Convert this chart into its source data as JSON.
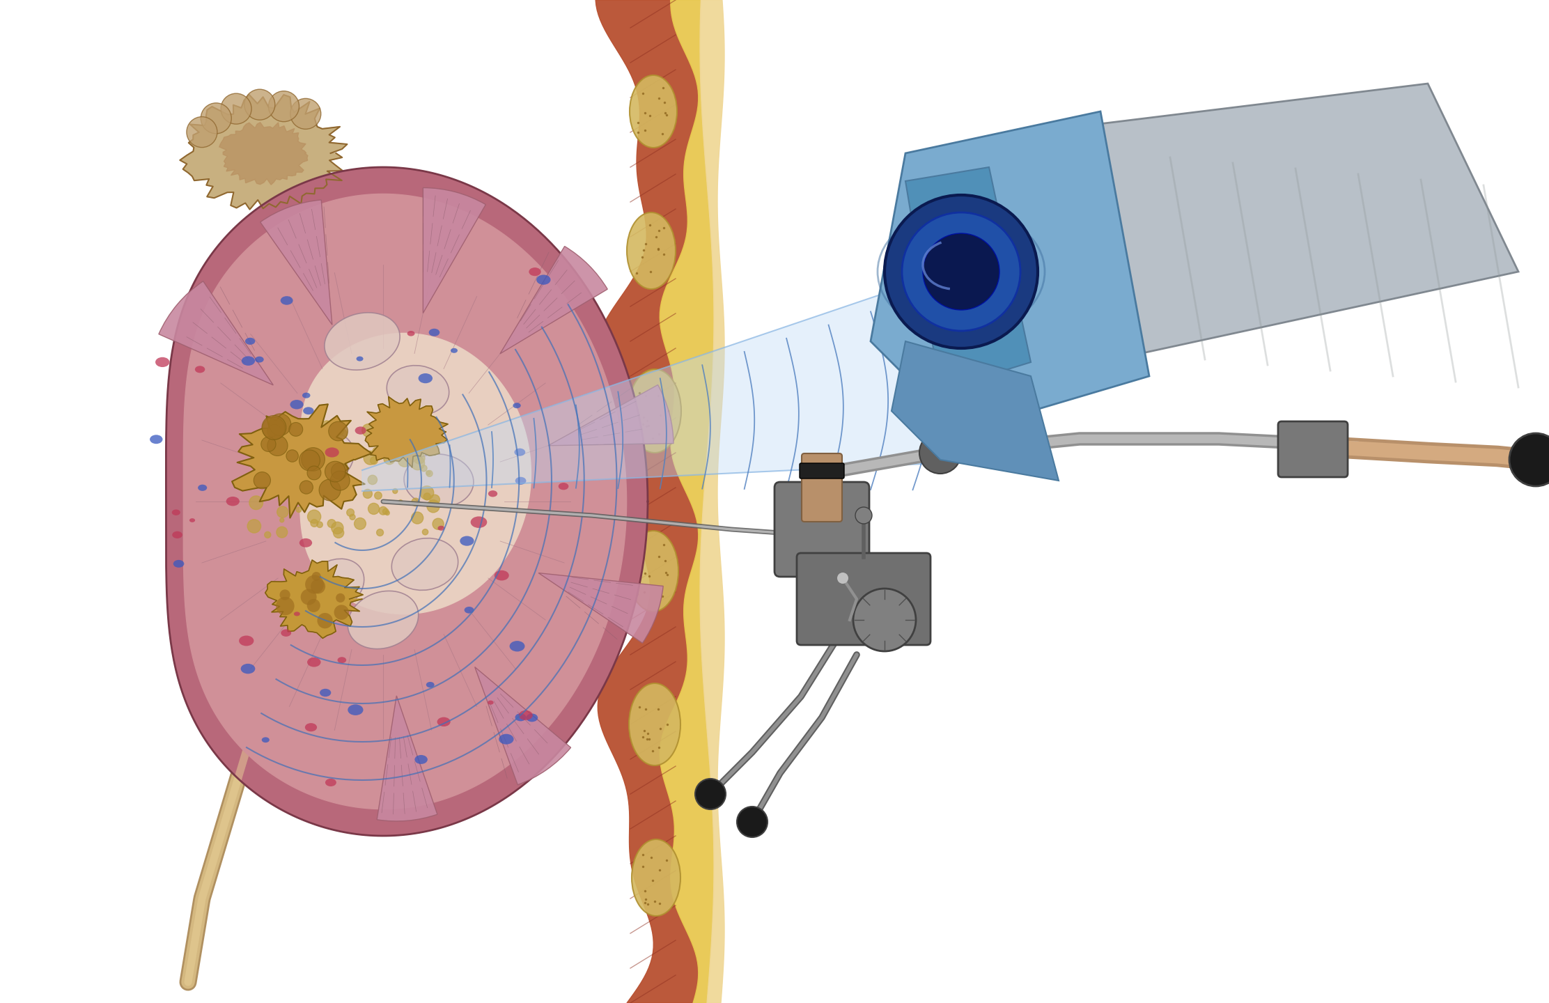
{
  "background_color": "#ffffff",
  "figsize": [
    22.24,
    14.4
  ],
  "dpi": 100,
  "kidney_outer_color": "#b8687a",
  "kidney_cortex_color": "#d4a0a8",
  "kidney_pelvis_color": "#e8cfc0",
  "kidney_stone_color": "#c8a050",
  "kidney_stone_dark": "#906020",
  "kidney_stone_sandy": "#d4b060",
  "adrenal_color": "#c8b080",
  "adrenal_dark": "#906830",
  "ureter_color": "#d4b880",
  "ureter_outline": "#b09060",
  "muscle_color": "#b85030",
  "muscle_dark": "#903020",
  "fat_color": "#e8c850",
  "fat_dark": "#c0a030",
  "skin_color": "#f0d898",
  "beam_fill": "#c0daf5",
  "beam_alpha": 0.5,
  "beam_line": "#80b0e0",
  "wave_line": "#5080c0",
  "device_blue": "#7aabcf",
  "device_blue_dark": "#4a7a9f",
  "device_blue_front": "#5090b8",
  "device_grey": "#b8c0c8",
  "device_grey_dark": "#808890",
  "device_lens_outer": "#1a3a80",
  "device_lens_inner": "#2050a8",
  "device_lens_rim": "#3060b0",
  "scope_grey": "#909090",
  "scope_grey_light": "#b8b8b8",
  "scope_grey_dark": "#606060",
  "scope_copper": "#b8906a",
  "scope_copper_light": "#d4aa80",
  "scope_black": "#1a1a1a"
}
